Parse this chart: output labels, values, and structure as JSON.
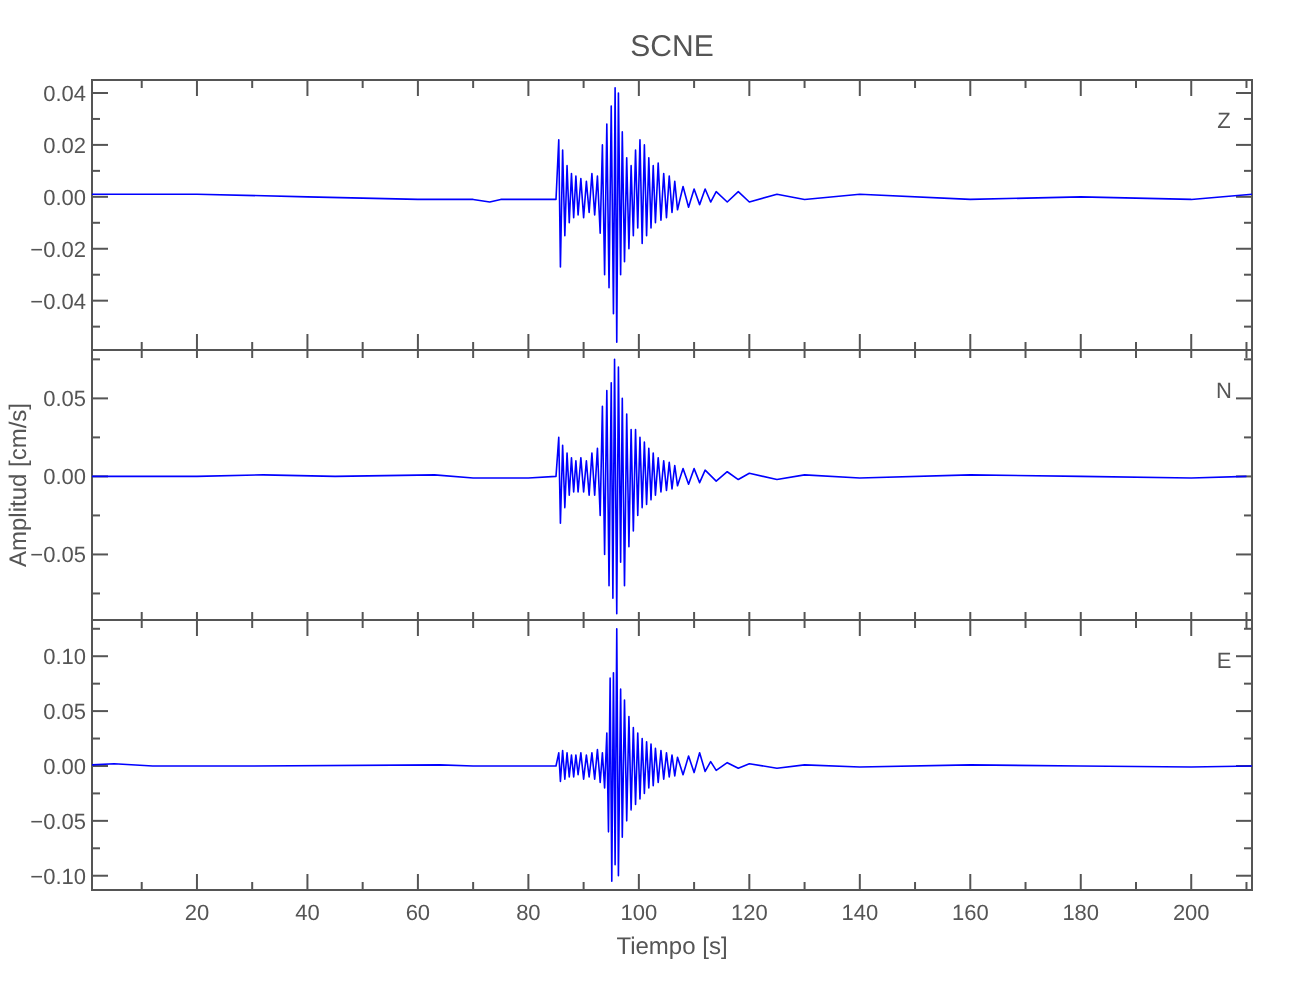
{
  "chart_data": [
    {
      "type": "line",
      "title": "SCNE",
      "annotations": [
        "Z"
      ],
      "tick_labels": "y",
      "xlim": [
        1,
        211
      ],
      "ylim": [
        -0.059,
        0.045
      ],
      "xticks": [
        {
          "value": 10,
          "label": null
        },
        20,
        {
          "value": 30,
          "label": null
        },
        40,
        {
          "value": 50,
          "label": null
        },
        60,
        {
          "value": 70,
          "label": null
        },
        80,
        {
          "value": 90,
          "label": null
        },
        100,
        {
          "value": 110,
          "label": null
        },
        120,
        {
          "value": 130,
          "label": null
        },
        140,
        {
          "value": 150,
          "label": null
        },
        160,
        {
          "value": 170,
          "label": null
        },
        180,
        {
          "value": 190,
          "label": null
        },
        200,
        {
          "value": 210,
          "label": null
        }
      ],
      "yticks": [
        {
          "value": -0.05,
          "label": null
        },
        {
          "value": -0.04,
          "label": "−0.04"
        },
        {
          "value": -0.03,
          "label": null
        },
        {
          "value": -0.02,
          "label": "−0.02"
        },
        {
          "value": -0.01,
          "label": null
        },
        {
          "value": 0,
          "label": "0.00"
        },
        {
          "value": 0.01,
          "label": null
        },
        {
          "value": 0.02,
          "label": "0.02"
        },
        {
          "value": 0.03,
          "label": null
        },
        {
          "value": 0.04,
          "label": "0.04"
        }
      ],
      "series": [
        {
          "color": "#0000ff",
          "x": [
            1,
            5,
            20,
            40,
            60,
            70,
            73,
            75,
            80,
            85,
            85.5,
            85.8,
            86.2,
            86.6,
            87,
            87.4,
            87.8,
            88.2,
            88.6,
            89,
            89.5,
            90,
            90.5,
            91,
            91.5,
            92,
            92.5,
            93,
            93.4,
            93.8,
            94.2,
            94.6,
            95,
            95.4,
            95.7,
            96,
            96.3,
            96.7,
            97,
            97.4,
            97.8,
            98.2,
            98.6,
            99,
            99.4,
            99.8,
            100.2,
            100.6,
            101,
            101.4,
            101.8,
            102.2,
            102.6,
            103,
            103.5,
            104,
            104.5,
            105,
            105.5,
            106,
            106.5,
            107,
            108,
            109,
            110,
            111,
            112,
            113,
            114,
            116,
            118,
            120,
            125,
            130,
            140,
            160,
            180,
            200,
            211
          ],
          "values": [
            0.001,
            0.001,
            0.001,
            0,
            -0.001,
            -0.001,
            -0.002,
            -0.001,
            -0.001,
            -0.001,
            0.022,
            -0.027,
            0.018,
            -0.015,
            0.012,
            -0.01,
            0.009,
            -0.008,
            0.008,
            -0.007,
            0.007,
            -0.008,
            0.006,
            -0.006,
            0.009,
            -0.007,
            0.008,
            -0.014,
            0.02,
            -0.03,
            0.028,
            -0.035,
            0.035,
            -0.045,
            0.042,
            -0.056,
            0.04,
            -0.03,
            0.025,
            -0.025,
            0.015,
            -0.02,
            0.012,
            -0.015,
            0.018,
            -0.012,
            0.022,
            -0.018,
            0.02,
            -0.015,
            0.015,
            -0.012,
            0.012,
            -0.01,
            0.013,
            -0.009,
            0.009,
            -0.008,
            0.008,
            -0.006,
            0.006,
            -0.005,
            0.004,
            -0.004,
            0.003,
            -0.003,
            0.003,
            -0.002,
            0.002,
            -0.002,
            0.002,
            -0.002,
            0.001,
            -0.001,
            0.001,
            -0.001,
            0,
            -0.001,
            0.001
          ]
        }
      ]
    },
    {
      "type": "line",
      "ylabel": "Amplitud [cm/s]",
      "annotations": [
        "N"
      ],
      "tick_labels": "y",
      "xlim": [
        1,
        211
      ],
      "ylim": [
        -0.092,
        0.081
      ],
      "xticks": [
        {
          "value": 10,
          "label": null
        },
        {
          "value": 20,
          "label": null
        },
        {
          "value": 30,
          "label": null
        },
        {
          "value": 40,
          "label": null
        },
        {
          "value": 50,
          "label": null
        },
        {
          "value": 60,
          "label": null
        },
        {
          "value": 70,
          "label": null
        },
        {
          "value": 80,
          "label": null
        },
        {
          "value": 90,
          "label": null
        },
        {
          "value": 100,
          "label": null
        },
        {
          "value": 110,
          "label": null
        },
        {
          "value": 120,
          "label": null
        },
        {
          "value": 130,
          "label": null
        },
        {
          "value": 140,
          "label": null
        },
        {
          "value": 150,
          "label": null
        },
        {
          "value": 160,
          "label": null
        },
        {
          "value": 170,
          "label": null
        },
        {
          "value": 180,
          "label": null
        },
        {
          "value": 190,
          "label": null
        },
        {
          "value": 200,
          "label": null
        },
        {
          "value": 210,
          "label": null
        }
      ],
      "yticks": [
        {
          "value": -0.075,
          "label": null
        },
        {
          "value": -0.05,
          "label": "−0.05"
        },
        {
          "value": -0.025,
          "label": null
        },
        {
          "value": 0,
          "label": "0.00"
        },
        {
          "value": 0.025,
          "label": null
        },
        {
          "value": 0.05,
          "label": "0.05"
        },
        {
          "value": 0.075,
          "label": null
        }
      ],
      "series": [
        {
          "color": "#0000ff",
          "x": [
            1,
            20,
            32,
            45,
            63,
            70,
            80,
            85,
            85.5,
            85.8,
            86.2,
            86.6,
            87,
            87.4,
            87.8,
            88.2,
            88.6,
            89,
            89.5,
            90,
            90.5,
            91,
            91.5,
            92,
            92.5,
            93,
            93.4,
            93.8,
            94.2,
            94.6,
            95,
            95.3,
            95.6,
            96,
            96.3,
            96.7,
            97,
            97.4,
            97.8,
            98.2,
            98.6,
            99,
            99.4,
            99.8,
            100.2,
            100.6,
            101,
            101.4,
            101.8,
            102.2,
            102.6,
            103,
            103.5,
            104,
            104.5,
            105,
            105.5,
            106,
            106.5,
            107,
            108,
            109,
            110,
            111,
            112,
            114,
            116,
            118,
            120,
            125,
            130,
            140,
            160,
            180,
            200,
            210
          ],
          "values": [
            0,
            0,
            0.001,
            0,
            0.001,
            -0.001,
            -0.001,
            0,
            0.025,
            -0.03,
            0.02,
            -0.02,
            0.015,
            -0.012,
            0.012,
            -0.01,
            0.01,
            -0.01,
            0.012,
            -0.01,
            0.01,
            -0.012,
            0.015,
            -0.012,
            0.018,
            -0.025,
            0.045,
            -0.05,
            0.055,
            -0.07,
            0.06,
            -0.078,
            0.075,
            -0.088,
            0.07,
            -0.055,
            0.05,
            -0.07,
            0.04,
            -0.045,
            0.03,
            -0.035,
            0.03,
            -0.025,
            0.025,
            -0.02,
            0.022,
            -0.018,
            0.018,
            -0.015,
            0.015,
            -0.012,
            0.012,
            -0.01,
            0.01,
            -0.009,
            0.009,
            -0.008,
            0.007,
            -0.006,
            0.005,
            -0.005,
            0.005,
            -0.004,
            0.004,
            -0.003,
            0.003,
            -0.002,
            0.002,
            -0.002,
            0.001,
            -0.001,
            0.001,
            0,
            -0.001,
            0
          ]
        }
      ]
    },
    {
      "type": "line",
      "xlabel": "Tiempo [s]",
      "annotations": [
        "E"
      ],
      "xlim": [
        1,
        211
      ],
      "ylim": [
        -0.113,
        0.133
      ],
      "xticks": [
        {
          "value": 10,
          "label": null
        },
        20,
        {
          "value": 30,
          "label": null
        },
        40,
        {
          "value": 50,
          "label": null
        },
        60,
        {
          "value": 70,
          "label": null
        },
        80,
        {
          "value": 90,
          "label": null
        },
        100,
        {
          "value": 110,
          "label": null
        },
        120,
        {
          "value": 130,
          "label": null
        },
        140,
        {
          "value": 150,
          "label": null
        },
        160,
        {
          "value": 170,
          "label": null
        },
        180,
        {
          "value": 190,
          "label": null
        },
        200,
        {
          "value": 210,
          "label": null
        }
      ],
      "yticks": [
        {
          "value": -0.1,
          "label": "−0.10"
        },
        {
          "value": -0.075,
          "label": null
        },
        {
          "value": -0.05,
          "label": "−0.05"
        },
        {
          "value": -0.025,
          "label": null
        },
        {
          "value": 0,
          "label": "0.00"
        },
        {
          "value": 0.025,
          "label": null
        },
        {
          "value": 0.05,
          "label": "0.05"
        },
        {
          "value": 0.075,
          "label": null
        },
        {
          "value": 0.1,
          "label": "0.10"
        },
        {
          "value": 0.125,
          "label": null
        }
      ],
      "series": [
        {
          "color": "#0000ff",
          "x": [
            1,
            5,
            12,
            30,
            64,
            70,
            80,
            85,
            85.5,
            85.8,
            86.2,
            86.6,
            87,
            87.4,
            87.8,
            88.2,
            88.6,
            89,
            89.5,
            90,
            90.5,
            91,
            91.5,
            92,
            92.5,
            93,
            93.4,
            93.8,
            94.2,
            94.5,
            94.8,
            95.1,
            95.4,
            95.7,
            96,
            96.3,
            96.7,
            97,
            97.4,
            97.8,
            98.2,
            98.6,
            99,
            99.4,
            99.8,
            100.2,
            100.6,
            101,
            101.4,
            101.8,
            102.2,
            102.6,
            103,
            103.5,
            104,
            104.5,
            105,
            105.5,
            106,
            106.5,
            107,
            108,
            109,
            110,
            111,
            112,
            113,
            114,
            116,
            118,
            120,
            125,
            130,
            140,
            160,
            180,
            200,
            211
          ],
          "values": [
            0.001,
            0.002,
            0,
            0,
            0.001,
            0,
            0,
            0,
            0.012,
            -0.014,
            0.014,
            -0.012,
            0.012,
            -0.01,
            0.01,
            -0.01,
            0.01,
            -0.008,
            0.012,
            -0.012,
            0.01,
            -0.01,
            0.012,
            -0.012,
            0.015,
            -0.015,
            0.012,
            -0.02,
            0.03,
            -0.06,
            0.08,
            -0.105,
            0.085,
            -0.09,
            0.125,
            -0.1,
            0.07,
            -0.065,
            0.06,
            -0.05,
            0.045,
            -0.04,
            0.035,
            -0.035,
            0.03,
            -0.03,
            0.025,
            -0.025,
            0.022,
            -0.02,
            0.02,
            -0.018,
            0.016,
            -0.015,
            0.014,
            -0.012,
            0.012,
            -0.01,
            0.01,
            -0.009,
            0.008,
            -0.008,
            0.009,
            -0.006,
            0.012,
            -0.005,
            0.004,
            -0.004,
            0.003,
            -0.002,
            0.002,
            -0.002,
            0.001,
            -0.001,
            0.001,
            0,
            -0.001,
            0
          ]
        }
      ]
    }
  ]
}
